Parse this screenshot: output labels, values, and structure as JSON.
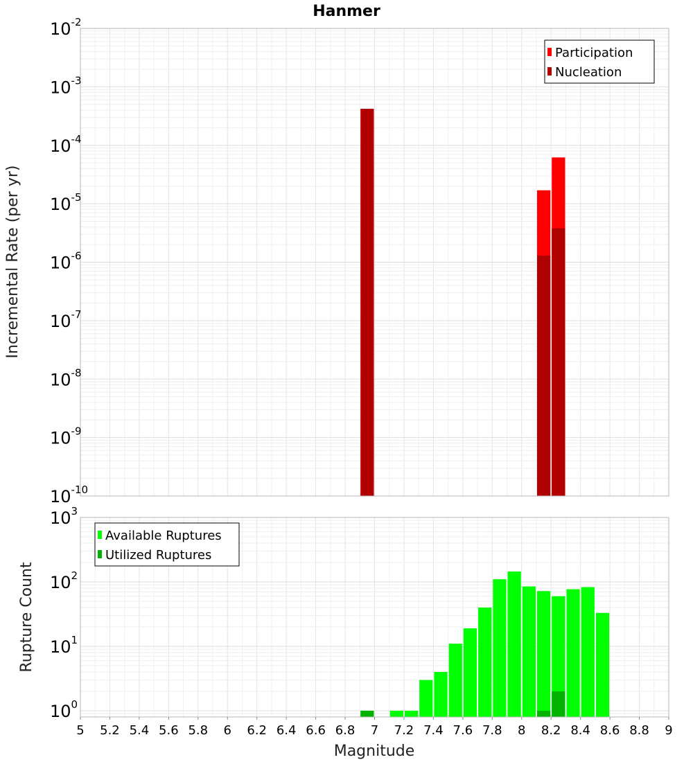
{
  "chart_data": [
    {
      "type": "bar",
      "title": "Hanmer",
      "xlabel": "",
      "ylabel": "Incremental Rate (per yr)",
      "xlim": [
        5,
        9
      ],
      "ylim": [
        1e-10,
        0.01
      ],
      "yscale": "log",
      "y_tick_exponents": [
        -10,
        -9,
        -8,
        -7,
        -6,
        -5,
        -4,
        -3,
        -2
      ],
      "grid": true,
      "legend": "top-right",
      "bar_width": 0.1,
      "series": [
        {
          "name": "Participation",
          "color": "#ff0000",
          "x": [
            6.95,
            8.15,
            8.25
          ],
          "values": [
            0.00042,
            1.7e-05,
            6.2e-05
          ]
        },
        {
          "name": "Nucleation",
          "color": "#b00000",
          "x": [
            6.95,
            8.15,
            8.25
          ],
          "values": [
            0.00042,
            1.3e-06,
            3.8e-06
          ]
        }
      ]
    },
    {
      "type": "bar",
      "title": "",
      "xlabel": "Magnitude",
      "ylabel": "Rupture Count",
      "xlim": [
        5,
        9
      ],
      "ylim": [
        0.8,
        1000
      ],
      "yscale": "log",
      "y_tick_exponents": [
        0,
        1,
        2,
        3
      ],
      "x_ticks": [
        "5",
        "5.2",
        "5.4",
        "5.6",
        "5.8",
        "6",
        "6.2",
        "6.4",
        "6.6",
        "6.8",
        "7",
        "7.2",
        "7.4",
        "7.6",
        "7.8",
        "8",
        "8.2",
        "8.4",
        "8.6",
        "8.8",
        "9"
      ],
      "grid": true,
      "legend": "top-left",
      "bar_width": 0.1,
      "series": [
        {
          "name": "Available Ruptures",
          "color": "#00ff00",
          "x": [
            6.95,
            7.15,
            7.25,
            7.35,
            7.45,
            7.55,
            7.65,
            7.75,
            7.85,
            7.95,
            8.05,
            8.15,
            8.25,
            8.35,
            8.45,
            8.55
          ],
          "values": [
            1,
            1,
            1,
            3,
            4,
            11,
            19,
            40,
            110,
            145,
            85,
            72,
            60,
            77,
            83,
            33
          ]
        },
        {
          "name": "Utilized Ruptures",
          "color": "#00b400",
          "x": [
            6.95,
            8.15,
            8.25
          ],
          "values": [
            1,
            1,
            2
          ]
        }
      ]
    }
  ]
}
